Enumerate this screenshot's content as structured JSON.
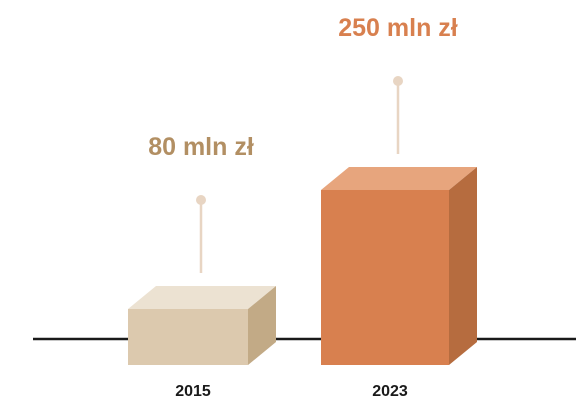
{
  "chart_data": {
    "type": "bar",
    "categories": [
      "2015",
      "2023"
    ],
    "values": [
      80,
      250
    ],
    "value_labels": [
      "80 mln zł",
      "250 mln zł"
    ],
    "title": "",
    "xlabel": "",
    "ylabel": "",
    "ylim": [
      0,
      250
    ],
    "grid": false,
    "legend": "none",
    "colors": {
      "bars": [
        "#dcc9ae",
        "#d8804f"
      ],
      "bar_tops": [
        "#ece2d2",
        "#e7a57d"
      ],
      "bar_sides": [
        "#c2aa86",
        "#b66c3f"
      ],
      "labels": [
        "#b28f63",
        "#d8804f"
      ],
      "pins": "#e8d5c3",
      "axis": "#1a1a1a"
    }
  }
}
